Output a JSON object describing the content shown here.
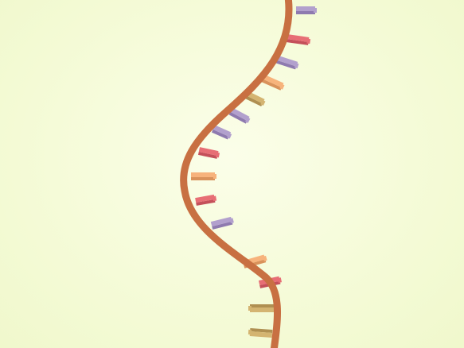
{
  "scene": {
    "subject": "single-strand-nucleic-acid",
    "background_color": "#f5fbd7",
    "backbone_color": "#c87042"
  },
  "base_colors": {
    "purple": {
      "light": "#b2a0cd",
      "dark": "#8e7aaf"
    },
    "red": {
      "light": "#e76e75",
      "dark": "#c4505a"
    },
    "orange": {
      "light": "#f7b37c",
      "dark": "#d9925b"
    },
    "tan": {
      "light": "#d4b471",
      "dark": "#af8f51"
    }
  },
  "bases": [
    {
      "name": "base-1",
      "color": "purple"
    },
    {
      "name": "base-2",
      "color": "red"
    },
    {
      "name": "base-3",
      "color": "purple"
    },
    {
      "name": "base-4",
      "color": "orange"
    },
    {
      "name": "base-5",
      "color": "tan"
    },
    {
      "name": "base-6",
      "color": "purple"
    },
    {
      "name": "base-7",
      "color": "purple"
    },
    {
      "name": "base-8",
      "color": "red"
    },
    {
      "name": "base-9",
      "color": "orange"
    },
    {
      "name": "base-10",
      "color": "red"
    },
    {
      "name": "base-11",
      "color": "purple"
    },
    {
      "name": "base-12",
      "color": "orange"
    },
    {
      "name": "base-13",
      "color": "red"
    },
    {
      "name": "base-14",
      "color": "tan"
    },
    {
      "name": "base-15",
      "color": "tan"
    }
  ]
}
